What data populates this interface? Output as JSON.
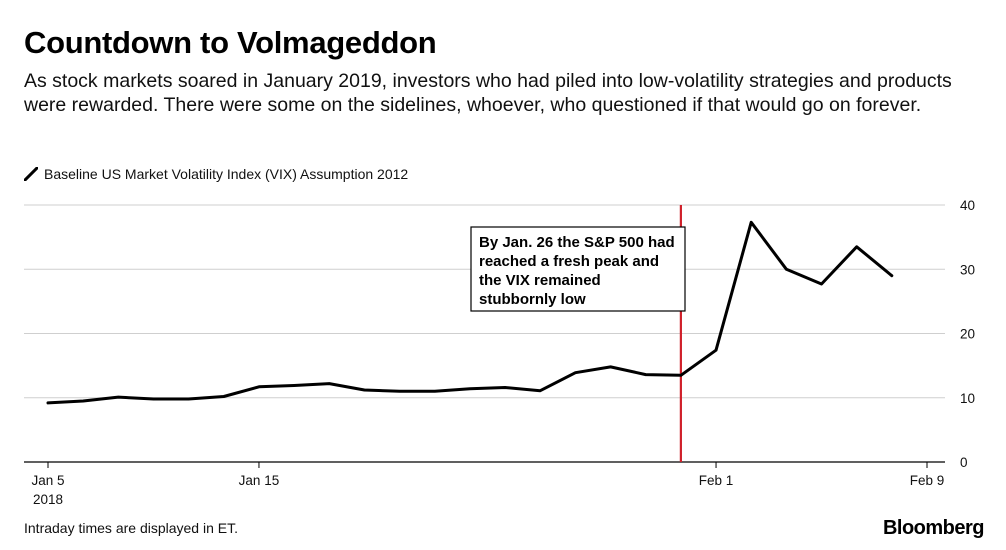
{
  "header": {
    "title": "Countdown to Volmageddon",
    "subtitle": "As stock markets soared in January 2019, investors who had piled into low-volatility strategies and products were rewarded. There were some on the sidelines, whoever, who questioned if that would go on forever."
  },
  "footer": {
    "note": "Intraday times are displayed in ET.",
    "brand": "Bloomberg"
  },
  "chart_data": {
    "type": "line",
    "title": "",
    "xlabel": "",
    "ylabel": "",
    "ylim": [
      0,
      40
    ],
    "yticks": [
      "0",
      "10",
      "20",
      "30",
      "40"
    ],
    "y_axis_side": "right",
    "grid": true,
    "legend": [
      "Baseline US Market Volatility Index (VIX) Assumption 2012"
    ],
    "x": [
      "2018-01-05",
      "2018-01-08",
      "2018-01-09",
      "2018-01-10",
      "2018-01-11",
      "2018-01-12",
      "2018-01-15",
      "2018-01-16",
      "2018-01-17",
      "2018-01-18",
      "2018-01-19",
      "2018-01-22",
      "2018-01-23",
      "2018-01-24",
      "2018-01-25",
      "2018-01-26",
      "2018-01-29",
      "2018-01-30",
      "2018-01-31",
      "2018-02-01",
      "2018-02-02",
      "2018-02-05",
      "2018-02-06",
      "2018-02-07",
      "2018-02-08"
    ],
    "xticks": [
      {
        "value": "2018-01-05",
        "label": "Jan 5",
        "sublabel": "2018"
      },
      {
        "value": "2018-01-15",
        "label": "Jan 15",
        "sublabel": ""
      },
      {
        "value": "2018-02-01",
        "label": "Feb 1",
        "sublabel": ""
      },
      {
        "value": "2018-02-09",
        "label": "Feb 9",
        "sublabel": ""
      }
    ],
    "series": [
      {
        "name": "Baseline US Market Volatility Index (VIX) Assumption 2012",
        "color": "#000000",
        "values": [
          9.2,
          9.5,
          10.1,
          9.8,
          9.8,
          10.2,
          11.7,
          11.9,
          12.2,
          11.2,
          11.0,
          11.0,
          11.4,
          11.6,
          11.1,
          13.9,
          14.8,
          13.6,
          13.5,
          17.4,
          37.3,
          30.0,
          27.7,
          33.5,
          29.0
        ]
      }
    ],
    "markers": [
      {
        "x": "2018-01-31",
        "color": "#d0202a"
      }
    ],
    "annotations": [
      {
        "text": "By Jan. 26 the S&P 500 had reached a fresh peak and the VIX remained stubbornly low"
      }
    ]
  }
}
